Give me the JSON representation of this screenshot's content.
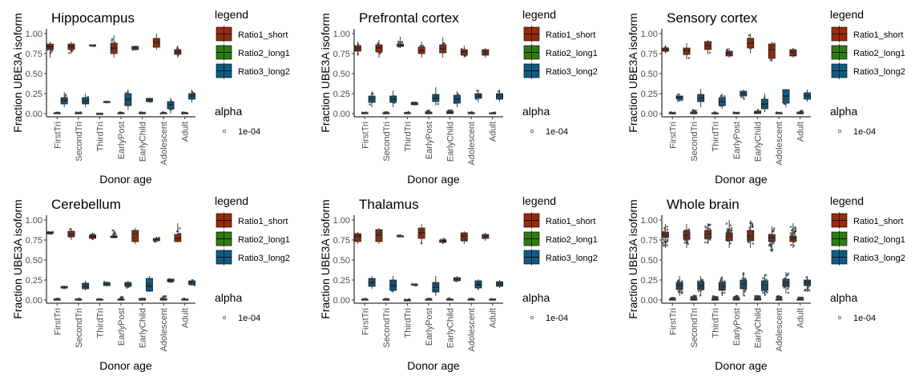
{
  "legend": {
    "title": "legend",
    "items": [
      {
        "label": "Ratio1_short",
        "color": "#9b2a08"
      },
      {
        "label": "Ratio2_long1",
        "color": "#2f7d10"
      },
      {
        "label": "Ratio3_long2",
        "color": "#0d5d86"
      }
    ],
    "alpha_title": "alpha",
    "alpha_label": "1e-04"
  },
  "chart_data": [
    {
      "type": "boxplot",
      "title": "Hippocampus",
      "xlabel": "Donor age",
      "ylabel": "Fraction UBE3A isoform",
      "ylim": [
        0,
        1
      ],
      "yticks": [
        "0.00",
        "0.25",
        "0.50",
        "0.75",
        "1.00"
      ],
      "categories": [
        "FirstTri",
        "SecondTri",
        "ThirdTri",
        "EarlyPost",
        "EarlyChild",
        "Adolescent",
        "Adult"
      ],
      "series": [
        {
          "name": "Ratio1_short",
          "median": [
            0.84,
            0.84,
            0.85,
            0.82,
            0.82,
            0.89,
            0.77
          ],
          "q1": [
            0.8,
            0.8,
            0.85,
            0.75,
            0.8,
            0.83,
            0.74
          ],
          "q3": [
            0.87,
            0.87,
            0.86,
            0.88,
            0.84,
            0.94,
            0.8
          ],
          "min": [
            0.7,
            0.75,
            0.84,
            0.7,
            0.79,
            0.8,
            0.7
          ],
          "max": [
            0.9,
            0.9,
            0.86,
            0.98,
            0.85,
            1.0,
            0.85
          ]
        },
        {
          "name": "Ratio2_long1",
          "median": [
            0.0,
            0.0,
            0.0,
            0.0,
            0.0,
            0.0,
            0.0
          ],
          "q1": [
            0.0,
            0.0,
            0.0,
            0.0,
            0.0,
            0.0,
            0.0
          ],
          "q3": [
            0.01,
            0.01,
            0.0,
            0.01,
            0.01,
            0.01,
            0.01
          ],
          "min": [
            0.0,
            0.0,
            0.0,
            0.0,
            0.0,
            0.0,
            0.0
          ],
          "max": [
            0.02,
            0.02,
            0.0,
            0.02,
            0.02,
            0.02,
            0.02
          ]
        },
        {
          "name": "Ratio3_long2",
          "median": [
            0.16,
            0.16,
            0.15,
            0.18,
            0.17,
            0.11,
            0.22
          ],
          "q1": [
            0.12,
            0.12,
            0.14,
            0.1,
            0.15,
            0.06,
            0.18
          ],
          "q3": [
            0.2,
            0.2,
            0.15,
            0.25,
            0.19,
            0.15,
            0.25
          ],
          "min": [
            0.08,
            0.08,
            0.14,
            0.05,
            0.14,
            0.0,
            0.14
          ],
          "max": [
            0.27,
            0.25,
            0.15,
            0.3,
            0.2,
            0.2,
            0.3
          ]
        }
      ]
    },
    {
      "type": "boxplot",
      "title": "Prefrontal cortex",
      "xlabel": "Donor age",
      "ylabel": "Fraction UBE3A isoform",
      "ylim": [
        0,
        1
      ],
      "yticks": [
        "0.00",
        "0.25",
        "0.50",
        "0.75",
        "1.00"
      ],
      "categories": [
        "FirstTri",
        "SecondTri",
        "ThirdTri",
        "EarlyPost",
        "EarlyChild",
        "Adolescent",
        "Adult"
      ],
      "series": [
        {
          "name": "Ratio1_short",
          "median": [
            0.82,
            0.82,
            0.85,
            0.79,
            0.81,
            0.77,
            0.77
          ],
          "q1": [
            0.78,
            0.77,
            0.84,
            0.75,
            0.76,
            0.73,
            0.73
          ],
          "q3": [
            0.85,
            0.86,
            0.87,
            0.83,
            0.86,
            0.8,
            0.8
          ],
          "min": [
            0.72,
            0.7,
            0.82,
            0.7,
            0.7,
            0.7,
            0.7
          ],
          "max": [
            0.9,
            0.92,
            0.96,
            0.9,
            0.95,
            0.85,
            0.82
          ]
        },
        {
          "name": "Ratio2_long1",
          "median": [
            0.0,
            0.0,
            0.0,
            0.0,
            0.01,
            0.0,
            0.0
          ],
          "q1": [
            0.0,
            0.0,
            0.0,
            0.0,
            0.0,
            0.0,
            0.0
          ],
          "q3": [
            0.01,
            0.01,
            0.01,
            0.02,
            0.03,
            0.01,
            0.01
          ],
          "min": [
            0.0,
            0.0,
            0.0,
            0.0,
            0.0,
            0.0,
            0.0
          ],
          "max": [
            0.02,
            0.02,
            0.02,
            0.05,
            0.05,
            0.02,
            0.02
          ]
        },
        {
          "name": "Ratio3_long2",
          "median": [
            0.18,
            0.18,
            0.13,
            0.19,
            0.18,
            0.22,
            0.22
          ],
          "q1": [
            0.14,
            0.14,
            0.11,
            0.15,
            0.13,
            0.19,
            0.18
          ],
          "q3": [
            0.22,
            0.22,
            0.14,
            0.24,
            0.23,
            0.25,
            0.25
          ],
          "min": [
            0.08,
            0.08,
            0.1,
            0.1,
            0.08,
            0.14,
            0.15
          ],
          "max": [
            0.28,
            0.29,
            0.15,
            0.33,
            0.28,
            0.3,
            0.3
          ]
        }
      ]
    },
    {
      "type": "boxplot",
      "title": "Sensory cortex",
      "xlabel": "Donor age",
      "ylabel": "Fraction UBE3A isoform",
      "ylim": [
        0,
        1
      ],
      "yticks": [
        "0.00",
        "0.25",
        "0.50",
        "0.75",
        "1.00"
      ],
      "categories": [
        "FirstTri",
        "SecondTri",
        "ThirdTri",
        "EarlyPost",
        "EarlyChild",
        "Adolescent",
        "Adult"
      ],
      "series": [
        {
          "name": "Ratio1_short",
          "median": [
            0.8,
            0.79,
            0.85,
            0.75,
            0.88,
            0.8,
            0.77
          ],
          "q1": [
            0.78,
            0.74,
            0.8,
            0.72,
            0.82,
            0.69,
            0.72
          ],
          "q3": [
            0.82,
            0.82,
            0.9,
            0.78,
            0.94,
            0.87,
            0.8
          ],
          "min": [
            0.75,
            0.68,
            0.74,
            0.7,
            0.75,
            0.65,
            0.7
          ],
          "max": [
            0.86,
            0.88,
            0.92,
            0.82,
            1.0,
            0.9,
            0.82
          ]
        },
        {
          "name": "Ratio2_long1",
          "median": [
            0.0,
            0.0,
            0.0,
            0.0,
            0.01,
            0.0,
            0.0
          ],
          "q1": [
            0.0,
            0.0,
            0.0,
            0.0,
            0.0,
            0.0,
            0.0
          ],
          "q3": [
            0.01,
            0.02,
            0.01,
            0.01,
            0.03,
            0.01,
            0.02
          ],
          "min": [
            0.0,
            0.0,
            0.0,
            0.0,
            0.0,
            0.0,
            0.0
          ],
          "max": [
            0.02,
            0.05,
            0.02,
            0.02,
            0.05,
            0.02,
            0.04
          ]
        },
        {
          "name": "Ratio3_long2",
          "median": [
            0.2,
            0.2,
            0.15,
            0.25,
            0.12,
            0.22,
            0.22
          ],
          "q1": [
            0.18,
            0.15,
            0.1,
            0.22,
            0.06,
            0.13,
            0.18
          ],
          "q3": [
            0.22,
            0.24,
            0.2,
            0.28,
            0.18,
            0.3,
            0.26
          ],
          "min": [
            0.15,
            0.08,
            0.06,
            0.18,
            0.02,
            0.08,
            0.15
          ],
          "max": [
            0.25,
            0.31,
            0.25,
            0.3,
            0.25,
            0.3,
            0.3
          ]
        }
      ]
    },
    {
      "type": "boxplot",
      "title": "Cerebellum",
      "xlabel": "Donor age",
      "ylabel": "Fraction UBE3A isoform",
      "ylim": [
        0,
        1
      ],
      "yticks": [
        "0.00",
        "0.25",
        "0.50",
        "0.75",
        "1.00"
      ],
      "categories": [
        "FirstTri",
        "SecondTri",
        "ThirdTri",
        "EarlyPost",
        "EarlyChild",
        "Adolescent",
        "Adult"
      ],
      "series": [
        {
          "name": "Ratio1_short",
          "median": [
            0.84,
            0.82,
            0.79,
            0.79,
            0.83,
            0.76,
            0.77
          ],
          "q1": [
            0.83,
            0.79,
            0.77,
            0.78,
            0.73,
            0.74,
            0.73
          ],
          "q3": [
            0.85,
            0.86,
            0.81,
            0.8,
            0.87,
            0.77,
            0.82
          ],
          "min": [
            0.82,
            0.75,
            0.75,
            0.77,
            0.7,
            0.72,
            0.72
          ],
          "max": [
            0.86,
            0.9,
            0.84,
            0.88,
            0.9,
            0.79,
            0.96
          ]
        },
        {
          "name": "Ratio2_long1",
          "median": [
            0.0,
            0.0,
            0.0,
            0.0,
            0.0,
            0.0,
            0.0
          ],
          "q1": [
            0.0,
            0.0,
            0.0,
            0.0,
            0.0,
            0.0,
            0.0
          ],
          "q3": [
            0.01,
            0.01,
            0.01,
            0.01,
            0.02,
            0.02,
            0.01
          ],
          "min": [
            0.0,
            0.0,
            0.0,
            0.0,
            0.0,
            0.0,
            0.0
          ],
          "max": [
            0.02,
            0.02,
            0.02,
            0.05,
            0.03,
            0.06,
            0.02
          ]
        },
        {
          "name": "Ratio3_long2",
          "median": [
            0.16,
            0.17,
            0.2,
            0.19,
            0.17,
            0.24,
            0.22
          ],
          "q1": [
            0.15,
            0.14,
            0.18,
            0.17,
            0.11,
            0.23,
            0.19
          ],
          "q3": [
            0.17,
            0.21,
            0.22,
            0.22,
            0.27,
            0.26,
            0.24
          ],
          "min": [
            0.14,
            0.12,
            0.17,
            0.15,
            0.1,
            0.22,
            0.18
          ],
          "max": [
            0.18,
            0.24,
            0.23,
            0.24,
            0.3,
            0.27,
            0.26
          ]
        }
      ]
    },
    {
      "type": "boxplot",
      "title": "Thalamus",
      "xlabel": "Donor age",
      "ylabel": "Fraction UBE3A isoform",
      "ylim": [
        0,
        1
      ],
      "yticks": [
        "0.00",
        "0.25",
        "0.50",
        "0.75",
        "1.00"
      ],
      "categories": [
        "FirstTri",
        "SecondTri",
        "ThirdTri",
        "EarlyPost",
        "EarlyChild",
        "Adolescent",
        "Adult"
      ],
      "series": [
        {
          "name": "Ratio1_short",
          "median": [
            0.8,
            0.81,
            0.8,
            0.84,
            0.74,
            0.8,
            0.8
          ],
          "q1": [
            0.73,
            0.73,
            0.8,
            0.77,
            0.72,
            0.74,
            0.77
          ],
          "q3": [
            0.83,
            0.88,
            0.8,
            0.9,
            0.75,
            0.84,
            0.82
          ],
          "min": [
            0.7,
            0.7,
            0.79,
            0.7,
            0.7,
            0.7,
            0.74
          ],
          "max": [
            0.85,
            0.9,
            0.81,
            0.95,
            0.77,
            0.86,
            0.84
          ]
        },
        {
          "name": "Ratio2_long1",
          "median": [
            0.0,
            0.0,
            0.0,
            0.0,
            0.0,
            0.0,
            0.0
          ],
          "q1": [
            0.0,
            0.0,
            0.0,
            0.0,
            0.0,
            0.0,
            0.0
          ],
          "q3": [
            0.01,
            0.01,
            0.0,
            0.01,
            0.01,
            0.01,
            0.01
          ],
          "min": [
            0.0,
            0.0,
            0.0,
            0.0,
            0.0,
            0.0,
            0.0
          ],
          "max": [
            0.02,
            0.02,
            0.01,
            0.02,
            0.02,
            0.02,
            0.02
          ]
        },
        {
          "name": "Ratio3_long2",
          "median": [
            0.22,
            0.18,
            0.19,
            0.16,
            0.26,
            0.19,
            0.2
          ],
          "q1": [
            0.17,
            0.12,
            0.19,
            0.1,
            0.24,
            0.15,
            0.17
          ],
          "q3": [
            0.27,
            0.25,
            0.2,
            0.22,
            0.28,
            0.24,
            0.23
          ],
          "min": [
            0.14,
            0.09,
            0.18,
            0.05,
            0.22,
            0.12,
            0.15
          ],
          "max": [
            0.3,
            0.3,
            0.2,
            0.3,
            0.3,
            0.26,
            0.25
          ]
        }
      ]
    },
    {
      "type": "boxplot",
      "title": "Whole brain",
      "xlabel": "Donor age",
      "ylabel": "Fraction UBE3A isoform",
      "ylim": [
        0,
        1
      ],
      "yticks": [
        "0.00",
        "0.25",
        "0.50",
        "0.75",
        "1.00"
      ],
      "categories": [
        "FirstTri",
        "SecondTri",
        "ThirdTri",
        "EarlyPost",
        "EarlyChild",
        "Adolescent",
        "Adult"
      ],
      "series": [
        {
          "name": "Ratio1_short",
          "median": [
            0.82,
            0.81,
            0.82,
            0.79,
            0.8,
            0.78,
            0.77
          ],
          "q1": [
            0.78,
            0.76,
            0.77,
            0.74,
            0.74,
            0.73,
            0.73
          ],
          "q3": [
            0.85,
            0.86,
            0.87,
            0.84,
            0.87,
            0.82,
            0.8
          ],
          "min": [
            0.65,
            0.65,
            0.7,
            0.65,
            0.65,
            0.6,
            0.65
          ],
          "max": [
            0.95,
            0.95,
            0.96,
            1.0,
            1.0,
            0.92,
            0.96
          ]
        },
        {
          "name": "Ratio2_long1",
          "median": [
            0.0,
            0.0,
            0.0,
            0.0,
            0.0,
            0.0,
            0.0
          ],
          "q1": [
            0.0,
            0.0,
            0.0,
            0.0,
            0.0,
            0.0,
            0.0
          ],
          "q3": [
            0.01,
            0.01,
            0.01,
            0.02,
            0.02,
            0.01,
            0.01
          ],
          "min": [
            0.0,
            0.0,
            0.0,
            0.0,
            0.0,
            0.0,
            0.0
          ],
          "max": [
            0.03,
            0.06,
            0.05,
            0.06,
            0.06,
            0.06,
            0.04
          ]
        },
        {
          "name": "Ratio3_long2",
          "median": [
            0.18,
            0.18,
            0.17,
            0.2,
            0.19,
            0.21,
            0.22
          ],
          "q1": [
            0.13,
            0.13,
            0.12,
            0.14,
            0.12,
            0.17,
            0.18
          ],
          "q3": [
            0.22,
            0.23,
            0.22,
            0.25,
            0.24,
            0.26,
            0.25
          ],
          "min": [
            0.05,
            0.05,
            0.05,
            0.05,
            0.05,
            0.08,
            0.1
          ],
          "max": [
            0.3,
            0.3,
            0.3,
            0.35,
            0.32,
            0.35,
            0.3
          ]
        }
      ]
    }
  ]
}
